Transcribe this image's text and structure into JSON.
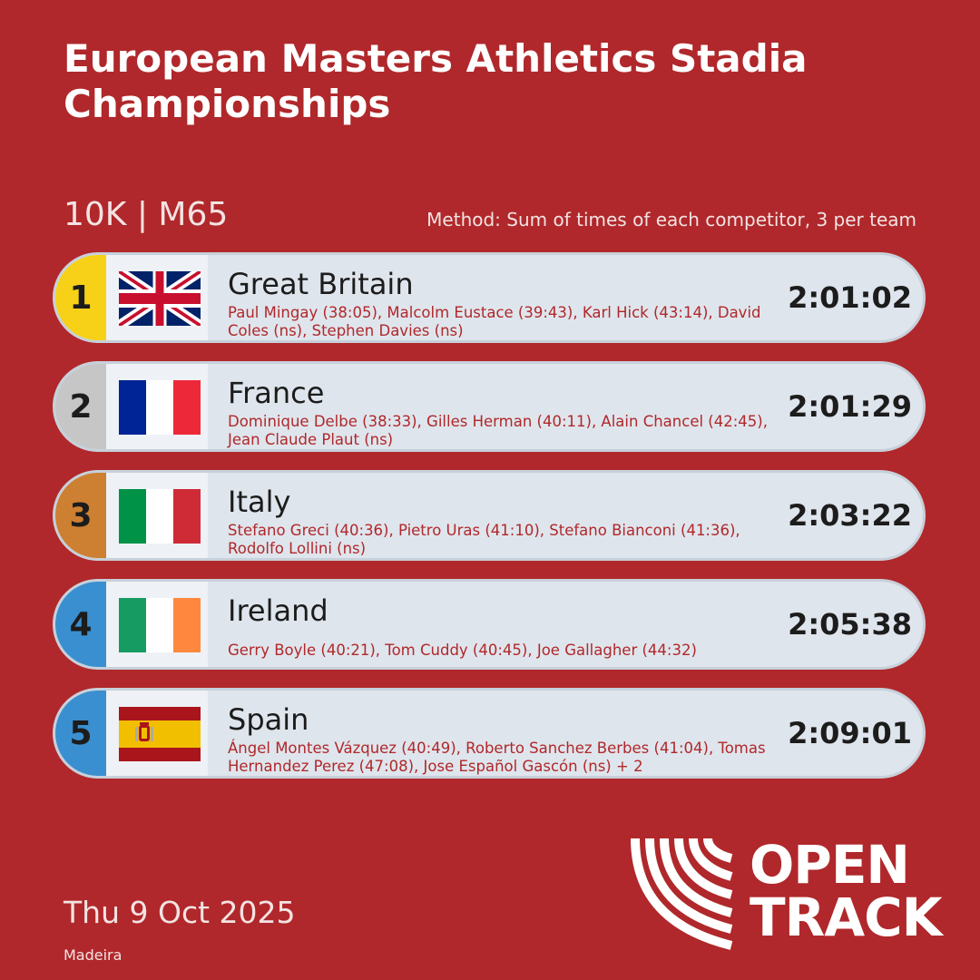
{
  "header": {
    "title": "European Masters Athletics Stadia Championships",
    "event": "10K | M65",
    "method": "Method: Sum of times of each competitor, 3 per team"
  },
  "results": [
    {
      "rank": "1",
      "team": "Great Britain",
      "flag": "flag-great-britain-icon",
      "rank_color": "#f7d117",
      "members": "Paul Mingay (38:05), Malcolm Eustace (39:43), Karl Hick (43:14), David Coles (ns), Stephen Davies (ns)",
      "time": "2:01:02"
    },
    {
      "rank": "2",
      "team": "France",
      "flag": "flag-france-icon",
      "rank_color": "#c6c6c6",
      "members": "Dominique Delbe (38:33), Gilles Herman (40:11), Alain Chancel (42:45), Jean Claude Plaut (ns)",
      "time": "2:01:29"
    },
    {
      "rank": "3",
      "team": "Italy",
      "flag": "flag-italy-icon",
      "rank_color": "#cd7f32",
      "members": "Stefano Greci (40:36), Pietro Uras (41:10), Stefano Bianconi (41:36), Rodolfo Lollini (ns)",
      "time": "2:03:22"
    },
    {
      "rank": "4",
      "team": "Ireland",
      "flag": "flag-ireland-icon",
      "rank_color": "#3a8fd0",
      "members": "Gerry Boyle (40:21), Tom Cuddy (40:45), Joe Gallagher (44:32)",
      "time": "2:05:38"
    },
    {
      "rank": "5",
      "team": "Spain",
      "flag": "flag-spain-icon",
      "rank_color": "#3a8fd0",
      "members": "Ángel Montes Vázquez (40:49), Roberto Sanchez Berbes (41:04), Tomas Hernandez Perez (47:08), Jose Español Gascón (ns) + 2",
      "time": "2:09:01"
    }
  ],
  "footer": {
    "date": "Thu 9 Oct 2025",
    "venue": "Madeira",
    "logo_line1": "OPEN",
    "logo_line2": "TRACK"
  },
  "colors": {
    "background": "#b0282b",
    "row_background": "#dfe5ec",
    "names_text": "#b0282b"
  }
}
